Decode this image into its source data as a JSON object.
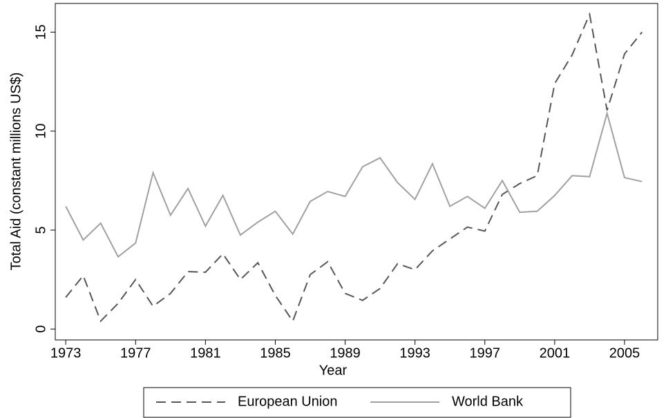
{
  "chart_data": {
    "type": "line",
    "x_label": "Year",
    "y_label": "Total Aid (constant millions US$)",
    "x": [
      1973,
      1974,
      1975,
      1976,
      1977,
      1978,
      1979,
      1980,
      1981,
      1982,
      1983,
      1984,
      1985,
      1986,
      1987,
      1988,
      1989,
      1990,
      1991,
      1992,
      1993,
      1994,
      1995,
      1996,
      1997,
      1998,
      1999,
      2000,
      2001,
      2002,
      2003,
      2004,
      2005,
      2006
    ],
    "series": [
      {
        "name": "European Union",
        "color": "#555555",
        "dash": "14,8",
        "values": [
          1.6,
          2.7,
          0.4,
          1.3,
          2.5,
          1.15,
          1.8,
          2.9,
          2.87,
          3.8,
          2.5,
          3.35,
          1.7,
          0.4,
          2.75,
          3.4,
          1.8,
          1.45,
          2.05,
          3.3,
          3.0,
          3.95,
          4.55,
          5.15,
          4.95,
          6.8,
          7.35,
          7.75,
          12.4,
          13.85,
          15.9,
          11.05,
          13.9,
          15.0
        ]
      },
      {
        "name": "World Bank",
        "color": "#a0a0a0",
        "dash": "",
        "values": [
          6.2,
          4.5,
          5.35,
          3.65,
          4.35,
          7.9,
          5.75,
          7.1,
          5.2,
          6.75,
          4.75,
          5.4,
          5.95,
          4.8,
          6.45,
          6.95,
          6.7,
          8.2,
          8.65,
          7.4,
          6.55,
          8.35,
          6.2,
          6.7,
          6.1,
          7.5,
          5.9,
          5.95,
          6.75,
          7.75,
          7.7,
          10.9,
          7.65,
          7.45
        ]
      }
    ],
    "xlim": [
      1972.4,
      2006.9
    ],
    "xticks": [
      1973,
      1977,
      1981,
      1985,
      1989,
      1993,
      1997,
      2001,
      2005
    ],
    "ylim": [
      -0.55,
      16.45
    ],
    "yticks": [
      0,
      5,
      10,
      15
    ]
  }
}
